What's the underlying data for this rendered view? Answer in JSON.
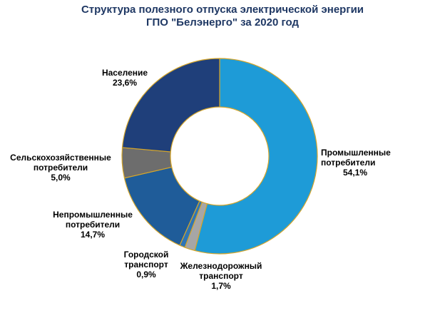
{
  "title": {
    "line1": "Структура полезного отпуска электрической энергии",
    "line2": "ГПО \"Белэнерго\" за 2020 год"
  },
  "chart_data": {
    "type": "pie",
    "variant": "donut",
    "slices": [
      {
        "label_lines": [
          "Промышленные",
          "потребители"
        ],
        "value": 54.1,
        "value_label": "54,1%",
        "color": "#1e9bd7"
      },
      {
        "label_lines": [
          "Железнодорожный",
          "транспорт"
        ],
        "value": 1.7,
        "value_label": "1,7%",
        "color": "#a6a6a6"
      },
      {
        "label_lines": [
          "Городской",
          "транспорт"
        ],
        "value": 0.9,
        "value_label": "0,9%",
        "color": "#2e75b6"
      },
      {
        "label_lines": [
          "Непромышленные",
          "потребители"
        ],
        "value": 14.7,
        "value_label": "14,7%",
        "color": "#1f5c99"
      },
      {
        "label_lines": [
          "Сельскохозяйственные",
          "потребители"
        ],
        "value": 5.0,
        "value_label": "5,0%",
        "color": "#6d6d6d"
      },
      {
        "label_lines": [
          "Население"
        ],
        "value": 23.6,
        "value_label": "23,6%",
        "color": "#1f3f7a"
      }
    ],
    "slice_border_color": "#d4a52a",
    "start_angle": "12 o'clock",
    "direction": "clockwise"
  }
}
